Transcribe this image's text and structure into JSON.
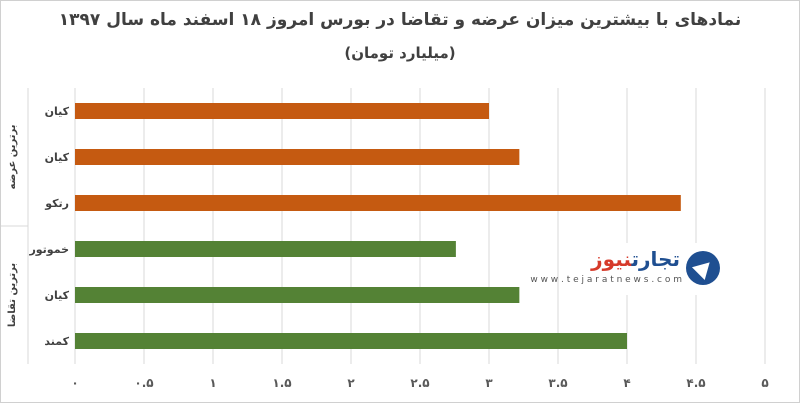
{
  "chart_data": {
    "type": "bar",
    "orientation": "horizontal",
    "title": "نمادهای با بیشترین میزان عرضه و تقاضا در بورس امروز ۱۸ اسفند ماه سال ۱۳۹۷",
    "subtitle": "(میلیارد تومان)",
    "categories": [
      "کیان",
      "کیان",
      "رتکو",
      "خموتور",
      "کیان",
      "کمند"
    ],
    "groups": [
      {
        "name": "برترین عرضه",
        "categories": [
          "کیان",
          "کیان",
          "رتکو"
        ],
        "values": [
          3.0,
          3.22,
          4.39
        ],
        "color": "#c55a11"
      },
      {
        "name": "برترین تقاضا",
        "categories": [
          "خموتور",
          "کیان",
          "کمند"
        ],
        "values": [
          2.76,
          3.22,
          4.0
        ],
        "color": "#548235"
      }
    ],
    "xlim": [
      0,
      5
    ],
    "x_ticks": [
      0,
      0.5,
      1,
      1.5,
      2,
      2.5,
      3,
      3.5,
      4,
      4.5,
      5
    ],
    "x_tick_labels": [
      "۰",
      "۰.۵",
      "۱",
      "۱.۵",
      "۲",
      "۲.۵",
      "۳",
      "۳.۵",
      "۴",
      "۴.۵",
      "۵"
    ],
    "grid": "vertical",
    "colors": {
      "supply": "#c55a11",
      "demand": "#548235",
      "grid": "#d9d9d9"
    }
  },
  "watermark": {
    "name_part1": "تجارت",
    "name_part2": "نیوز",
    "url": "w w w . t e j a r a t n e w s . c o m"
  }
}
